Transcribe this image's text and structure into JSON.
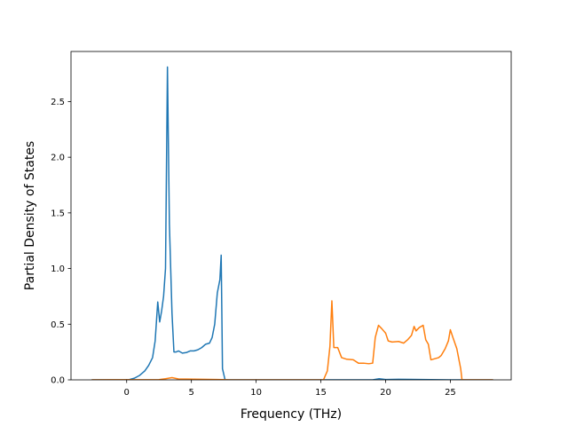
{
  "chart_data": {
    "type": "line",
    "title": "",
    "xlabel": "Frequency (THz)",
    "ylabel": "Partial Density of States",
    "xlim": [
      -4.3,
      29.7
    ],
    "ylim": [
      0,
      2.95
    ],
    "xticks": [
      0,
      5,
      10,
      15,
      20,
      25
    ],
    "yticks": [
      0.0,
      0.5,
      1.0,
      1.5,
      2.0,
      2.5
    ],
    "xtick_labels": [
      "0",
      "5",
      "10",
      "15",
      "20",
      "25"
    ],
    "ytick_labels": [
      "0.0",
      "0.5",
      "1.0",
      "1.5",
      "2.0",
      "2.5"
    ],
    "grid": false,
    "legend": "none",
    "series": [
      {
        "color": "#1f77b4",
        "points": [
          [
            -2.7,
            0
          ],
          [
            -0.2,
            0
          ],
          [
            0.2,
            0.002
          ],
          [
            0.6,
            0.015
          ],
          [
            1.0,
            0.04
          ],
          [
            1.4,
            0.08
          ],
          [
            1.7,
            0.13
          ],
          [
            2.0,
            0.2
          ],
          [
            2.2,
            0.35
          ],
          [
            2.4,
            0.7
          ],
          [
            2.55,
            0.52
          ],
          [
            2.7,
            0.62
          ],
          [
            2.85,
            0.75
          ],
          [
            3.0,
            1.0
          ],
          [
            3.15,
            2.81
          ],
          [
            3.3,
            1.4
          ],
          [
            3.5,
            0.6
          ],
          [
            3.65,
            0.25
          ],
          [
            3.8,
            0.25
          ],
          [
            4.0,
            0.26
          ],
          [
            4.3,
            0.24
          ],
          [
            4.6,
            0.245
          ],
          [
            4.9,
            0.26
          ],
          [
            5.2,
            0.26
          ],
          [
            5.5,
            0.27
          ],
          [
            5.8,
            0.29
          ],
          [
            6.1,
            0.32
          ],
          [
            6.4,
            0.33
          ],
          [
            6.6,
            0.38
          ],
          [
            6.8,
            0.5
          ],
          [
            7.0,
            0.78
          ],
          [
            7.2,
            0.9
          ],
          [
            7.3,
            1.12
          ],
          [
            7.4,
            0.1
          ],
          [
            7.6,
            0
          ],
          [
            15.0,
            0
          ],
          [
            19.0,
            0
          ],
          [
            19.5,
            0.01
          ],
          [
            20.0,
            0.003
          ],
          [
            21.0,
            0.005
          ],
          [
            22.0,
            0.004
          ],
          [
            23.5,
            0.002
          ],
          [
            25.0,
            0
          ],
          [
            28.3,
            0
          ]
        ]
      },
      {
        "color": "#ff7f0e",
        "points": [
          [
            -2.7,
            0
          ],
          [
            2.5,
            0.002
          ],
          [
            3.0,
            0.01
          ],
          [
            3.5,
            0.02
          ],
          [
            4.0,
            0.008
          ],
          [
            7.0,
            0.003
          ],
          [
            8.0,
            0
          ],
          [
            15.2,
            0
          ],
          [
            15.5,
            0.08
          ],
          [
            15.7,
            0.3
          ],
          [
            15.85,
            0.71
          ],
          [
            16.0,
            0.29
          ],
          [
            16.3,
            0.29
          ],
          [
            16.6,
            0.2
          ],
          [
            17.0,
            0.185
          ],
          [
            17.5,
            0.18
          ],
          [
            17.9,
            0.15
          ],
          [
            18.3,
            0.15
          ],
          [
            18.7,
            0.145
          ],
          [
            19.0,
            0.15
          ],
          [
            19.2,
            0.38
          ],
          [
            19.45,
            0.49
          ],
          [
            19.7,
            0.46
          ],
          [
            20.0,
            0.42
          ],
          [
            20.2,
            0.35
          ],
          [
            20.5,
            0.34
          ],
          [
            21.0,
            0.345
          ],
          [
            21.4,
            0.33
          ],
          [
            21.7,
            0.36
          ],
          [
            22.0,
            0.4
          ],
          [
            22.2,
            0.48
          ],
          [
            22.35,
            0.44
          ],
          [
            22.6,
            0.47
          ],
          [
            22.9,
            0.49
          ],
          [
            23.1,
            0.36
          ],
          [
            23.3,
            0.32
          ],
          [
            23.5,
            0.18
          ],
          [
            23.8,
            0.19
          ],
          [
            24.1,
            0.2
          ],
          [
            24.3,
            0.22
          ],
          [
            24.6,
            0.28
          ],
          [
            24.85,
            0.35
          ],
          [
            25.0,
            0.45
          ],
          [
            25.2,
            0.38
          ],
          [
            25.5,
            0.28
          ],
          [
            25.8,
            0.1
          ],
          [
            25.9,
            0
          ],
          [
            28.3,
            0
          ]
        ]
      }
    ]
  }
}
